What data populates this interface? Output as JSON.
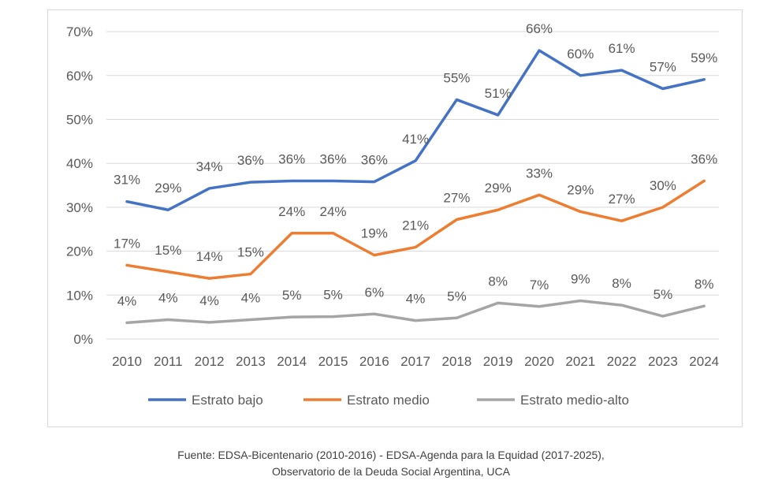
{
  "chart_data": {
    "type": "line",
    "title": "",
    "xlabel": "",
    "ylabel": "",
    "ylim": [
      0,
      70
    ],
    "yticks": [
      0,
      10,
      20,
      30,
      40,
      50,
      60,
      70
    ],
    "ytick_labels": [
      "0%",
      "10%",
      "20%",
      "30%",
      "40%",
      "50%",
      "60%",
      "70%"
    ],
    "grid": true,
    "legend_position": "bottom",
    "categories": [
      "2010",
      "2011",
      "2012",
      "2013",
      "2014",
      "2015",
      "2016",
      "2017",
      "2018",
      "2019",
      "2020",
      "2021",
      "2022",
      "2023",
      "2024"
    ],
    "series": [
      {
        "name": "Estrato bajo",
        "color": "#4472c4",
        "values": [
          31.3,
          29.4,
          34.3,
          35.7,
          36.0,
          36.0,
          35.8,
          40.6,
          54.5,
          51.0,
          65.7,
          60.0,
          61.2,
          57.0,
          59.1
        ],
        "labels": [
          "31%",
          "29%",
          "34%",
          "36%",
          "36%",
          "36%",
          "36%",
          "41%",
          "55%",
          "51%",
          "66%",
          "60%",
          "61%",
          "57%",
          "59%"
        ]
      },
      {
        "name": "Estrato medio",
        "color": "#ed7d31",
        "values": [
          16.8,
          15.3,
          13.8,
          14.8,
          24.1,
          24.1,
          19.1,
          20.9,
          27.2,
          29.4,
          32.8,
          29.0,
          26.9,
          30.0,
          36.0
        ],
        "labels": [
          "17%",
          "15%",
          "14%",
          "15%",
          "24%",
          "24%",
          "19%",
          "21%",
          "27%",
          "29%",
          "33%",
          "29%",
          "27%",
          "30%",
          "36%"
        ]
      },
      {
        "name": "Estrato medio-alto",
        "color": "#a5a5a5",
        "values": [
          3.7,
          4.4,
          3.8,
          4.4,
          5.0,
          5.1,
          5.7,
          4.2,
          4.8,
          8.2,
          7.4,
          8.7,
          7.7,
          5.2,
          7.5
        ],
        "labels": [
          "4%",
          "4%",
          "4%",
          "4%",
          "5%",
          "5%",
          "6%",
          "4%",
          "5%",
          "8%",
          "7%",
          "9%",
          "8%",
          "5%",
          "8%"
        ]
      }
    ]
  },
  "source": {
    "line1": "Fuente: EDSA-Bicentenario (2010-2016) - EDSA-Agenda para la Equidad (2017-2025),",
    "line2": "Observatorio de la Deuda Social Argentina, UCA"
  }
}
